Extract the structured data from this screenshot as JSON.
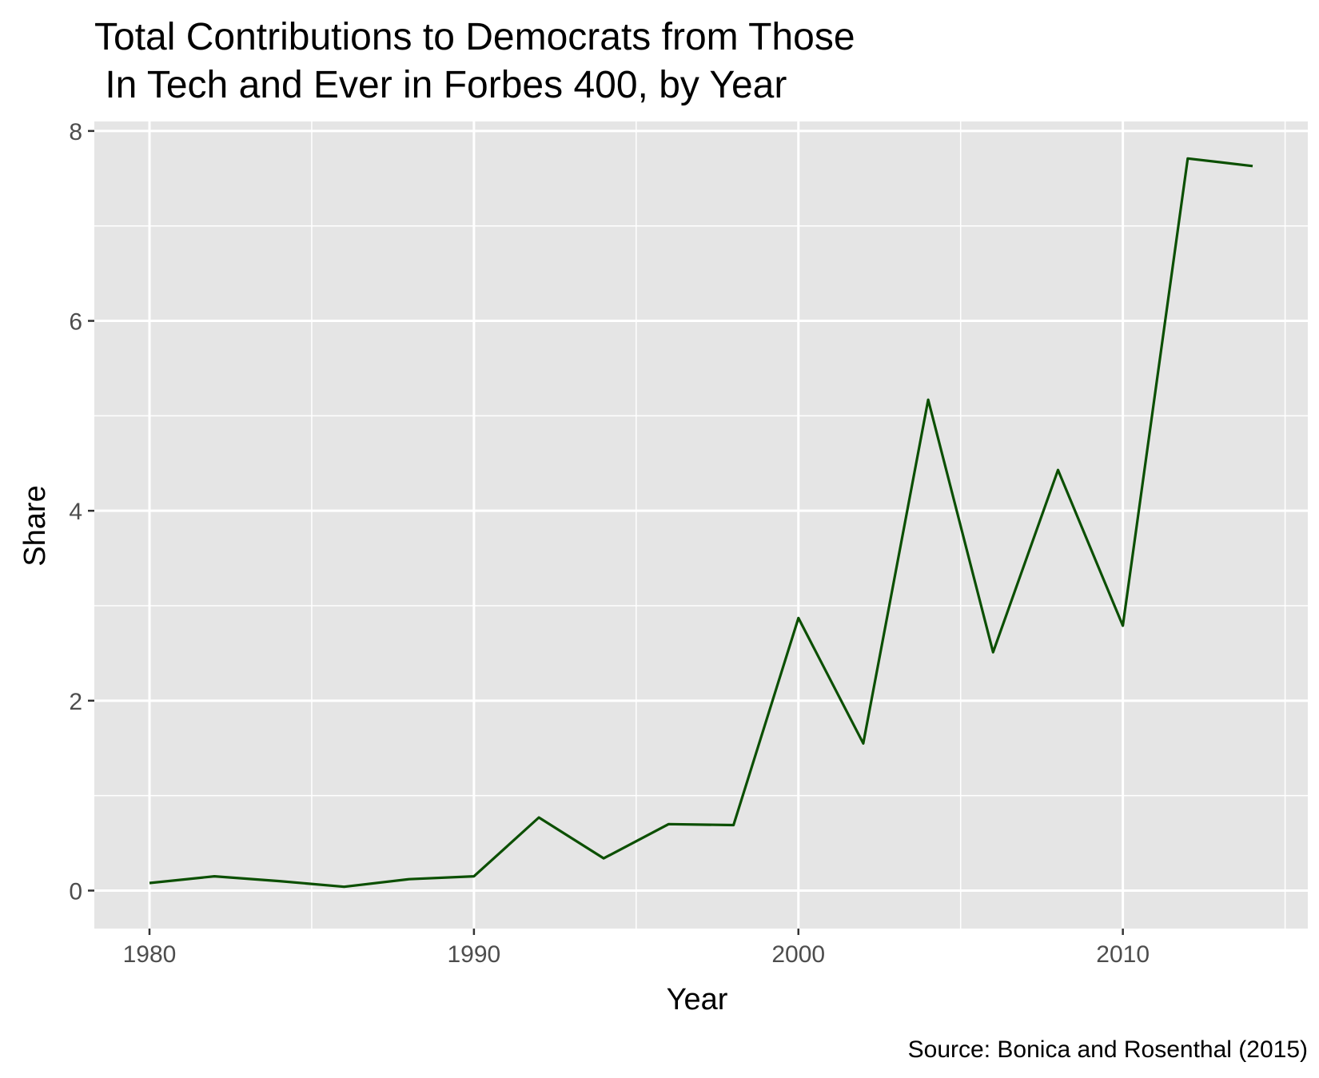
{
  "chart_data": {
    "type": "line",
    "title_lines": [
      "Total Contributions to Democrats from Those",
      " In Tech and Ever in Forbes 400, by Year"
    ],
    "xlabel": "Year",
    "ylabel": "Share",
    "caption": "Source: Bonica and Rosenthal (2015)",
    "xlim": [
      1978.3,
      2015.7
    ],
    "ylim": [
      -0.4,
      8.1
    ],
    "x_ticks": [
      1980,
      1990,
      2000,
      2010
    ],
    "x_minor_ticks": [
      1985,
      1995,
      2005,
      2015
    ],
    "y_ticks": [
      0,
      2,
      4,
      6,
      8
    ],
    "y_minor_ticks": [
      1,
      3,
      5,
      7
    ],
    "grid": true,
    "line_color": "#0b4f00",
    "panel_background": "#e5e5e5",
    "series": [
      {
        "x": [
          1980,
          1982,
          1984,
          1986,
          1988,
          1990,
          1992,
          1994,
          1996,
          1998,
          2000,
          2002,
          2004,
          2006,
          2008,
          2010,
          2012,
          2014
        ],
        "values": [
          0.08,
          0.15,
          0.1,
          0.04,
          0.12,
          0.15,
          0.77,
          0.34,
          0.7,
          0.69,
          2.87,
          1.55,
          5.17,
          2.51,
          4.43,
          2.79,
          7.71,
          7.63
        ]
      }
    ]
  }
}
